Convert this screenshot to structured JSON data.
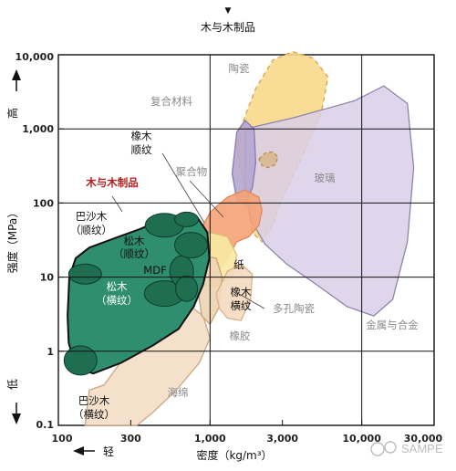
{
  "chart_data": {
    "type": "scatter",
    "title": "木与木制品",
    "xlabel": "密度（kg/m³）",
    "ylabel": "强度（MPa）",
    "x_scale": "log",
    "y_scale": "log",
    "xlim": [
      100,
      30000
    ],
    "ylim": [
      0.1,
      10000
    ],
    "x_ticks": [
      "100",
      "300",
      "1,000",
      "3,000",
      "10,000",
      "30,000"
    ],
    "y_ticks": [
      "10,000",
      "1,000",
      "100",
      "10",
      "1",
      "0.1"
    ],
    "x_arrow_label": "轻",
    "y_high_label": "高",
    "y_low_label": "低",
    "grid": true,
    "highlight_label": "木与木制品",
    "regions": [
      {
        "key": "ceramics",
        "name": "陶瓷",
        "color": "#f8d98c",
        "x_range": [
          1900,
          6000
        ],
        "y_range": [
          20,
          9000
        ]
      },
      {
        "key": "composites",
        "name": "复合材料",
        "color": "#b5a6cf",
        "x_range": [
          1400,
          2000
        ],
        "y_range": [
          90,
          1300
        ]
      },
      {
        "key": "polymers",
        "name": "聚合物",
        "color": "#f5a275",
        "x_range": [
          850,
          2200
        ],
        "y_range": [
          10,
          150
        ]
      },
      {
        "key": "glass",
        "name": "玻璃",
        "color": "#d7b88c",
        "x_range": [
          2100,
          2800
        ],
        "y_range": [
          300,
          500
        ]
      },
      {
        "key": "metals",
        "name": "金属与合金",
        "color": "#d9cfe8",
        "x_range": [
          1700,
          22000
        ],
        "y_range": [
          3,
          4000
        ]
      },
      {
        "key": "paper",
        "name": "纸",
        "color": "#f9e9a4",
        "x_range": [
          650,
          1500
        ],
        "y_range": [
          8,
          40
        ]
      },
      {
        "key": "rubber",
        "name": "橡胶",
        "color": "#edd3b2",
        "x_range": [
          850,
          1200
        ],
        "y_range": [
          2.3,
          20
        ]
      },
      {
        "key": "foams",
        "name": "海绵",
        "color": "#f3ddc5",
        "x_range": [
          150,
          1000
        ],
        "y_range": [
          0.1,
          4
        ]
      },
      {
        "key": "porous_ceramics",
        "name": "多孔陶瓷",
        "color": "#f4d9c0",
        "x_range": [
          1100,
          1900
        ],
        "y_range": [
          2.5,
          15
        ]
      },
      {
        "key": "woods",
        "name": "木与木制品",
        "color": "#2e8e6e",
        "x_range": [
          115,
          1000
        ],
        "y_range": [
          0.5,
          70
        ]
      }
    ],
    "wood_sub_regions": [
      {
        "name": "巴沙木（顺纹）",
        "x": 150,
        "y": 11
      },
      {
        "name": "巴沙木（横纹）",
        "x": 140,
        "y": 0.75
      },
      {
        "name": "松木（顺纹）",
        "x": 520,
        "y": 50
      },
      {
        "name": "松木（横纹）",
        "x": 500,
        "y": 6
      },
      {
        "name": "橡木（顺纹）",
        "x": 700,
        "y": 20
      },
      {
        "name": "MDF",
        "x": 650,
        "y": 12
      }
    ],
    "labels": {
      "ceramics": "陶瓷",
      "composites": "复合材料",
      "oak_along": "橡木\n顺纹",
      "polymers": "聚合物",
      "glass": "玻璃",
      "balsa_along": "巴沙木\n（顺纹）",
      "pine_along": "松木\n（顺纹）",
      "mdf": "MDF",
      "paper": "纸",
      "pine_across": "松木\n（横纹）",
      "oak_across": "橡木\n横纹",
      "porous_ceramics": "多孔陶瓷",
      "rubber": "橡胶",
      "metals": "金属与合金",
      "foams": "海绵",
      "balsa_across": "巴沙木\n（横纹）"
    },
    "watermark": "SAMPE"
  }
}
